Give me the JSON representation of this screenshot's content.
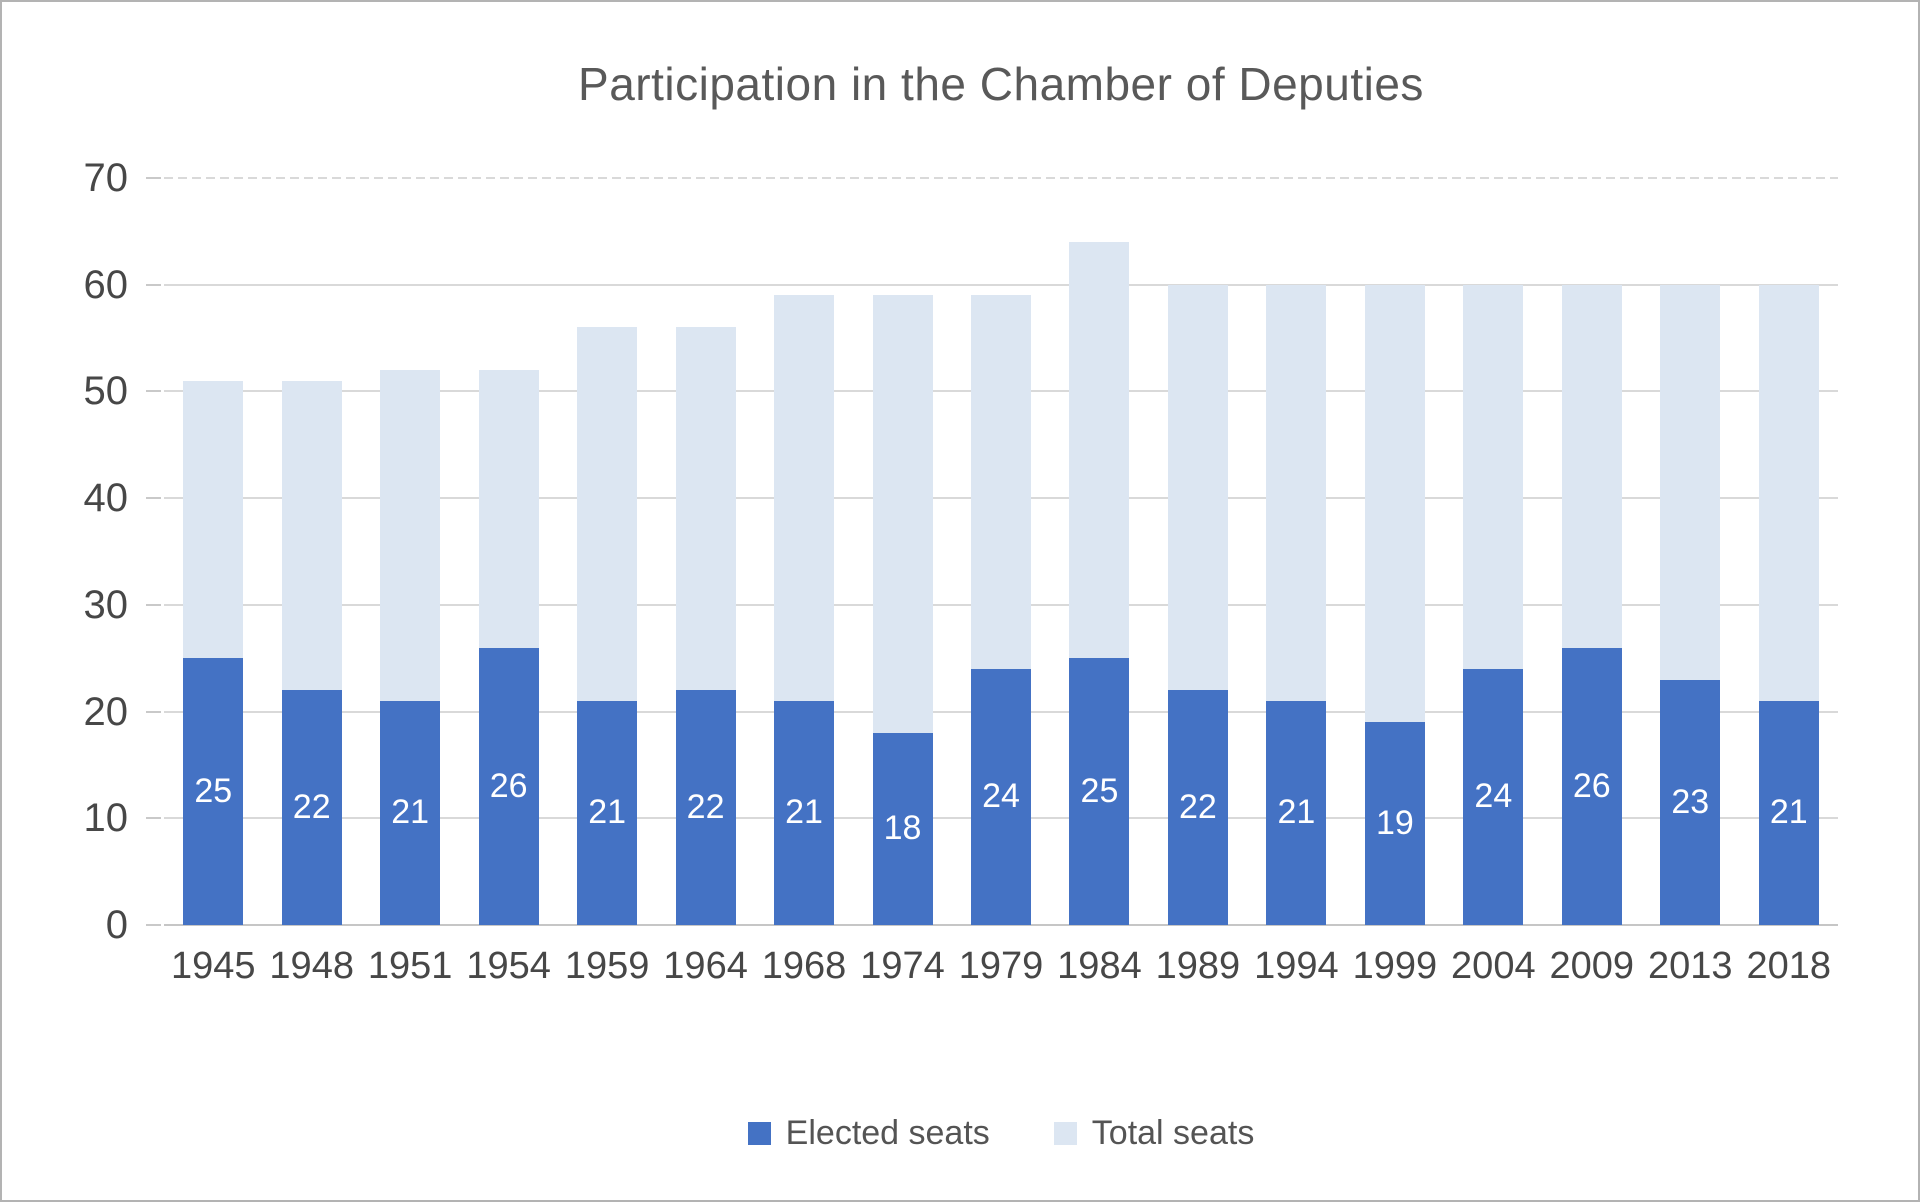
{
  "title": "Participation in the Chamber of Deputies",
  "legend": {
    "items": [
      {
        "label": "Elected seats",
        "color": "#4472C4"
      },
      {
        "label": "Total seats",
        "color": "#DCE6F2"
      }
    ]
  },
  "colors": {
    "elected_bar": "#4472C4",
    "total_bar": "#DCE6F2",
    "gridline": "#D9D9D9",
    "axis_text": "#474747",
    "title_text": "#595959",
    "bar_label_text": "#FFFFFF"
  },
  "chart_data": {
    "type": "bar",
    "subtype": "overlapped-columns",
    "title": "Participation in the Chamber of Deputies",
    "categories": [
      "1945",
      "1948",
      "1951",
      "1954",
      "1959",
      "1964",
      "1968",
      "1974",
      "1979",
      "1984",
      "1989",
      "1994",
      "1999",
      "2004",
      "2009",
      "2013",
      "2018"
    ],
    "series": [
      {
        "name": "Elected seats",
        "color": "#4472C4",
        "values": [
          25,
          22,
          21,
          26,
          21,
          22,
          21,
          18,
          24,
          25,
          22,
          21,
          19,
          24,
          26,
          23,
          21
        ],
        "data_labels": "shown, white, centered inside bar"
      },
      {
        "name": "Total seats",
        "color": "#DCE6F2",
        "values": [
          51,
          51,
          52,
          52,
          56,
          56,
          59,
          59,
          59,
          64,
          60,
          60,
          60,
          60,
          60,
          60,
          60
        ],
        "data_labels": "none"
      }
    ],
    "xlabel": "",
    "ylabel": "",
    "ylim": [
      0,
      70
    ],
    "y_ticks": [
      0,
      10,
      20,
      30,
      40,
      50,
      60,
      70
    ],
    "grid": true,
    "legend_position": "bottom"
  }
}
